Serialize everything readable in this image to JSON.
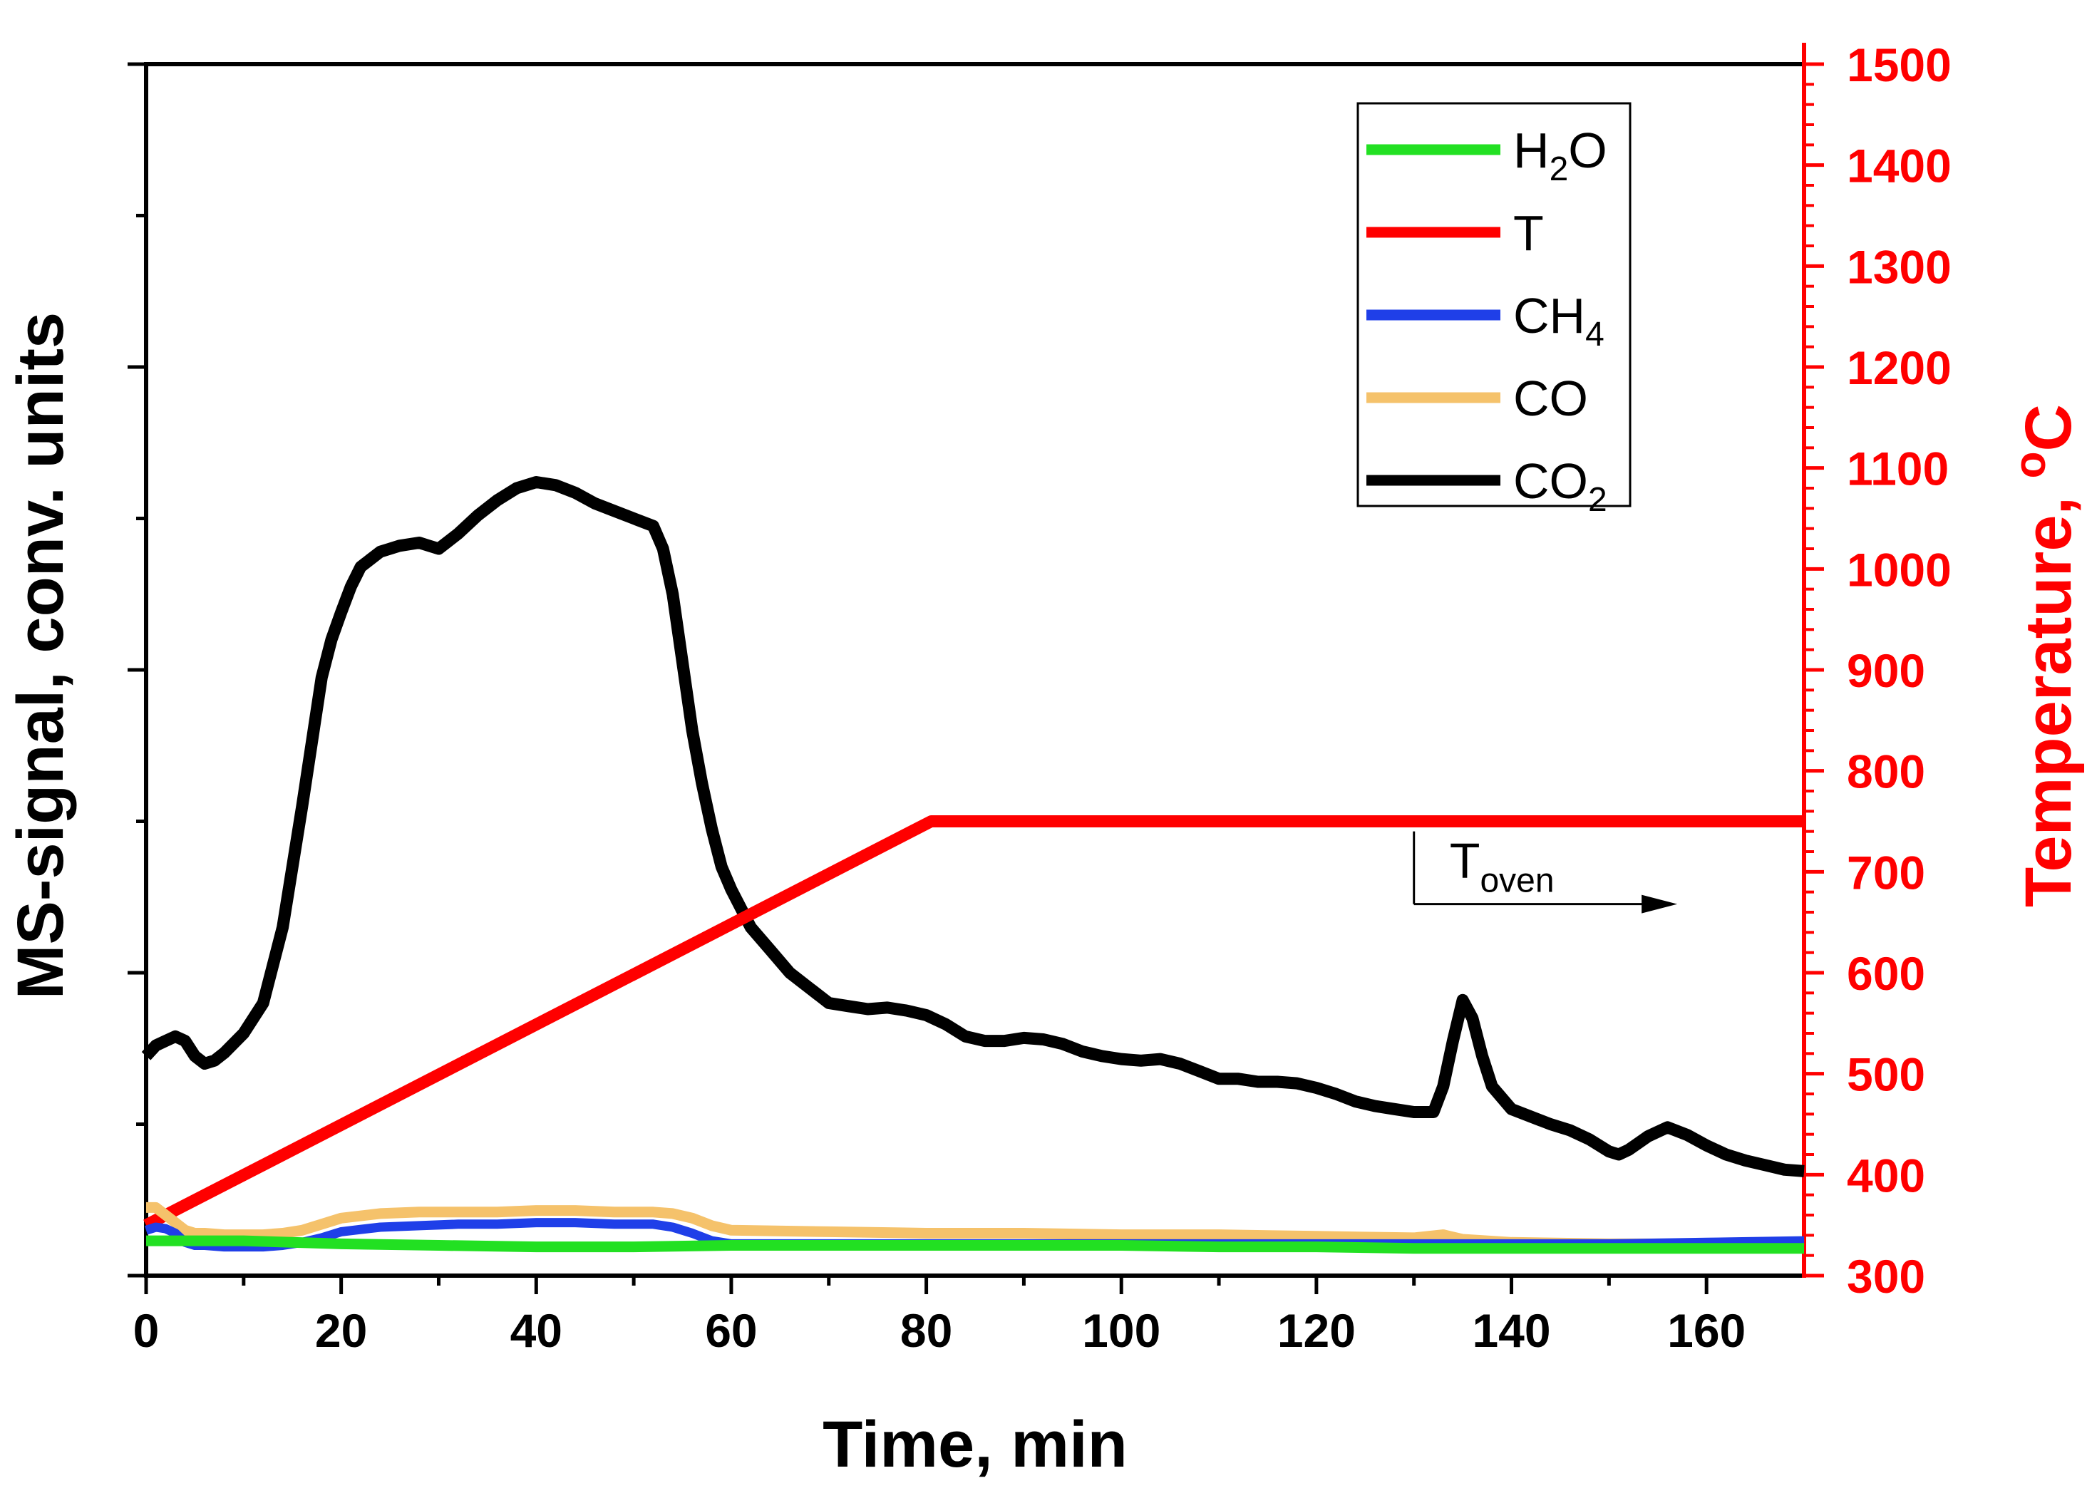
{
  "chart_data": {
    "type": "line",
    "xlabel": "Time, min",
    "ylabel": "MS-signal, conv. units",
    "y2label_main": "Temperature, ",
    "y2label_unit_sup": "o",
    "y2label_unit": "C",
    "xlim": [
      0,
      170
    ],
    "ylim": [
      0,
      8
    ],
    "y2lim": [
      300,
      1500
    ],
    "x_ticks": [
      0,
      20,
      40,
      60,
      80,
      100,
      120,
      140,
      160
    ],
    "x_tick_labels": [
      "0",
      "20",
      "40",
      "60",
      "80",
      "100",
      "120",
      "140",
      "160"
    ],
    "y_major_ticks": [
      0,
      2,
      4,
      6,
      8
    ],
    "y2_ticks": [
      300,
      400,
      500,
      600,
      700,
      800,
      900,
      1000,
      1100,
      1200,
      1300,
      1400,
      1500
    ],
    "y2_tick_labels": [
      "300",
      "400",
      "500",
      "600",
      "700",
      "800",
      "900",
      "1000",
      "1100",
      "1200",
      "1300",
      "1400",
      "1500"
    ],
    "legend_position": "top-right",
    "legend": [
      {
        "id": "h2o",
        "main": "H",
        "sub": "2",
        "tail": "O",
        "color": "#22e022"
      },
      {
        "id": "t",
        "main": "T",
        "sub": "",
        "tail": "",
        "color": "#ff0000"
      },
      {
        "id": "ch4",
        "main": "CH",
        "sub": "4",
        "tail": "",
        "color": "#1f3fe8"
      },
      {
        "id": "co",
        "main": "CO",
        "sub": "",
        "tail": "",
        "color": "#f5c26b"
      },
      {
        "id": "co2",
        "main": "CO",
        "sub": "2",
        "tail": "",
        "color": "#000000"
      }
    ],
    "annotation": {
      "main": "T",
      "sub": "oven",
      "x_start": 130,
      "x_end": 157,
      "y2_level": 700,
      "y2_line": 668
    },
    "series": [
      {
        "name": "T",
        "axis": "right",
        "color": "#ff0000",
        "x": [
          0,
          80.5,
          170
        ],
        "y": [
          350,
          750,
          750
        ]
      },
      {
        "name": "CO2",
        "axis": "left",
        "color": "#000000",
        "x": [
          0,
          1,
          2,
          3,
          4,
          5,
          6,
          7,
          8,
          10,
          12,
          14,
          16,
          18,
          19,
          20,
          21,
          22,
          23,
          24,
          26,
          28,
          29,
          30,
          32,
          34,
          36,
          38,
          40,
          42,
          44,
          46,
          48,
          50,
          52,
          53,
          54,
          55,
          56,
          57,
          58,
          59,
          60,
          62,
          64,
          66,
          68,
          70,
          72,
          74,
          76,
          78,
          80,
          82,
          84,
          86,
          88,
          90,
          92,
          94,
          96,
          98,
          100,
          102,
          104,
          106,
          108,
          110,
          112,
          114,
          116,
          118,
          120,
          122,
          124,
          126,
          128,
          130,
          132,
          133,
          134,
          135,
          136,
          137,
          138,
          140,
          142,
          144,
          146,
          148,
          150,
          151,
          152,
          154,
          156,
          158,
          160,
          162,
          164,
          166,
          168,
          170
        ],
        "y": [
          1.45,
          1.52,
          1.55,
          1.58,
          1.55,
          1.45,
          1.4,
          1.42,
          1.47,
          1.6,
          1.8,
          2.3,
          3.1,
          3.95,
          4.2,
          4.38,
          4.55,
          4.68,
          4.73,
          4.78,
          4.82,
          4.84,
          4.82,
          4.8,
          4.9,
          5.02,
          5.12,
          5.2,
          5.24,
          5.22,
          5.17,
          5.1,
          5.05,
          5.0,
          4.95,
          4.8,
          4.5,
          4.05,
          3.6,
          3.25,
          2.95,
          2.7,
          2.55,
          2.3,
          2.15,
          2.0,
          1.9,
          1.8,
          1.78,
          1.76,
          1.77,
          1.75,
          1.72,
          1.66,
          1.58,
          1.55,
          1.55,
          1.57,
          1.56,
          1.53,
          1.48,
          1.45,
          1.43,
          1.42,
          1.43,
          1.4,
          1.35,
          1.3,
          1.3,
          1.28,
          1.28,
          1.27,
          1.24,
          1.2,
          1.15,
          1.12,
          1.1,
          1.08,
          1.08,
          1.25,
          1.55,
          1.82,
          1.7,
          1.45,
          1.25,
          1.1,
          1.05,
          1.0,
          0.96,
          0.9,
          0.82,
          0.8,
          0.83,
          0.92,
          0.98,
          0.93,
          0.86,
          0.8,
          0.76,
          0.73,
          0.7,
          0.69
        ]
      },
      {
        "name": "CO",
        "axis": "left",
        "color": "#f5c26b",
        "x": [
          0,
          1,
          2,
          3,
          4,
          5,
          6,
          8,
          10,
          12,
          14,
          16,
          18,
          20,
          24,
          28,
          32,
          36,
          40,
          44,
          48,
          52,
          54,
          56,
          58,
          60,
          70,
          80,
          90,
          100,
          110,
          120,
          130,
          133,
          135,
          140,
          150,
          160,
          170
        ],
        "y": [
          0.45,
          0.45,
          0.4,
          0.35,
          0.3,
          0.28,
          0.28,
          0.27,
          0.27,
          0.27,
          0.28,
          0.3,
          0.34,
          0.38,
          0.41,
          0.42,
          0.42,
          0.42,
          0.43,
          0.43,
          0.42,
          0.42,
          0.41,
          0.38,
          0.33,
          0.3,
          0.29,
          0.28,
          0.28,
          0.27,
          0.27,
          0.26,
          0.25,
          0.27,
          0.24,
          0.22,
          0.21,
          0.21,
          0.2
        ]
      },
      {
        "name": "CH4",
        "axis": "left",
        "color": "#1f3fe8",
        "x": [
          0,
          1,
          2,
          3,
          4,
          5,
          6,
          8,
          10,
          12,
          14,
          16,
          18,
          20,
          24,
          28,
          32,
          36,
          40,
          44,
          48,
          52,
          54,
          56,
          58,
          60,
          70,
          80,
          90,
          100,
          110,
          120,
          130,
          140,
          150,
          160,
          170
        ],
        "y": [
          0.3,
          0.32,
          0.31,
          0.28,
          0.22,
          0.2,
          0.2,
          0.19,
          0.19,
          0.19,
          0.2,
          0.22,
          0.25,
          0.29,
          0.32,
          0.33,
          0.34,
          0.34,
          0.35,
          0.35,
          0.34,
          0.34,
          0.32,
          0.28,
          0.23,
          0.21,
          0.21,
          0.21,
          0.21,
          0.21,
          0.21,
          0.21,
          0.21,
          0.21,
          0.21,
          0.22,
          0.23
        ]
      },
      {
        "name": "H2O",
        "axis": "left",
        "color": "#22e022",
        "x": [
          0,
          10,
          20,
          30,
          40,
          50,
          60,
          70,
          80,
          90,
          100,
          110,
          120,
          130,
          140,
          150,
          160,
          170
        ],
        "y": [
          0.23,
          0.23,
          0.21,
          0.2,
          0.19,
          0.19,
          0.2,
          0.2,
          0.2,
          0.2,
          0.2,
          0.19,
          0.19,
          0.18,
          0.18,
          0.18,
          0.18,
          0.18
        ]
      }
    ]
  }
}
